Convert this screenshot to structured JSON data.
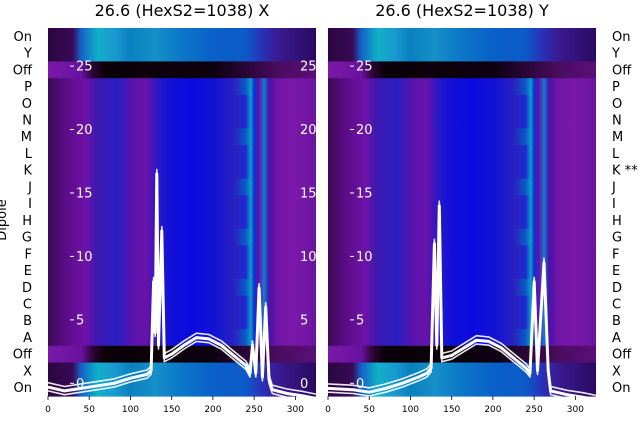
{
  "chart_data": {
    "type": "heatmap",
    "ylabel": "Dipole",
    "row_labels": [
      "On",
      "Y",
      "Off",
      "P",
      "O",
      "N",
      "M",
      "L",
      "K",
      "J",
      "I",
      "H",
      "G",
      "F",
      "E",
      "D",
      "C",
      "B",
      "A",
      "Off",
      "X",
      "On"
    ],
    "xticks": [
      0,
      50,
      100,
      150,
      200,
      250,
      300
    ],
    "overlay_yticks": [
      0,
      5,
      10,
      15,
      20,
      25
    ],
    "panels": [
      {
        "title": "26.6 (HexS2=1038) X",
        "xlim": [
          0,
          325
        ],
        "row_labels": [
          "On",
          "Y",
          "Off",
          "P",
          "O",
          "N",
          "M",
          "L",
          "K",
          "J",
          "I",
          "H",
          "G",
          "F",
          "E",
          "D",
          "C",
          "B",
          "A",
          "Off",
          "X",
          "On"
        ],
        "overlay_ylim": [
          -1,
          28
        ],
        "trace": [
          [
            0,
            -0.3
          ],
          [
            20,
            -0.6
          ],
          [
            40,
            -0.4
          ],
          [
            60,
            -0.2
          ],
          [
            80,
            0.0
          ],
          [
            100,
            0.4
          ],
          [
            120,
            0.7
          ],
          [
            125,
            1.0
          ],
          [
            128,
            8.0
          ],
          [
            130,
            4.0
          ],
          [
            132,
            16.5
          ],
          [
            134,
            3.0
          ],
          [
            138,
            12.0
          ],
          [
            141,
            2.0
          ],
          [
            150,
            2.3
          ],
          [
            165,
            3.0
          ],
          [
            180,
            3.6
          ],
          [
            195,
            3.5
          ],
          [
            210,
            3.0
          ],
          [
            225,
            2.2
          ],
          [
            240,
            1.4
          ],
          [
            245,
            0.8
          ],
          [
            248,
            3.0
          ],
          [
            252,
            0.8
          ],
          [
            256,
            7.5
          ],
          [
            260,
            0.5
          ],
          [
            264,
            6.0
          ],
          [
            268,
            0.3
          ],
          [
            272,
            -0.5
          ],
          [
            290,
            -0.8
          ],
          [
            310,
            -1.0
          ],
          [
            325,
            -1.2
          ]
        ]
      },
      {
        "title": "26.6 (HexS2=1038) Y",
        "xlim": [
          0,
          325
        ],
        "row_labels": [
          "On",
          "Y",
          "Off",
          "P",
          "O",
          "N",
          "M",
          "L",
          "K **",
          "J",
          "I",
          "H",
          "G",
          "F",
          "E",
          "D",
          "C",
          "B",
          "A",
          "Off",
          "X",
          "On"
        ],
        "overlay_ylim": [
          -1,
          28
        ],
        "trace": [
          [
            0,
            -0.4
          ],
          [
            30,
            -0.5
          ],
          [
            50,
            -0.7
          ],
          [
            70,
            -0.4
          ],
          [
            90,
            0.0
          ],
          [
            110,
            0.5
          ],
          [
            120,
            0.8
          ],
          [
            125,
            1.2
          ],
          [
            129,
            11.0
          ],
          [
            132,
            3.0
          ],
          [
            135,
            14.0
          ],
          [
            138,
            2.0
          ],
          [
            150,
            2.2
          ],
          [
            165,
            2.8
          ],
          [
            180,
            3.4
          ],
          [
            195,
            3.3
          ],
          [
            210,
            2.8
          ],
          [
            225,
            2.0
          ],
          [
            240,
            1.2
          ],
          [
            245,
            0.8
          ],
          [
            250,
            8.0
          ],
          [
            254,
            1.0
          ],
          [
            262,
            9.5
          ],
          [
            267,
            1.0
          ],
          [
            270,
            -0.6
          ],
          [
            290,
            -0.9
          ],
          [
            310,
            -1.1
          ],
          [
            325,
            -1.3
          ]
        ]
      }
    ]
  }
}
